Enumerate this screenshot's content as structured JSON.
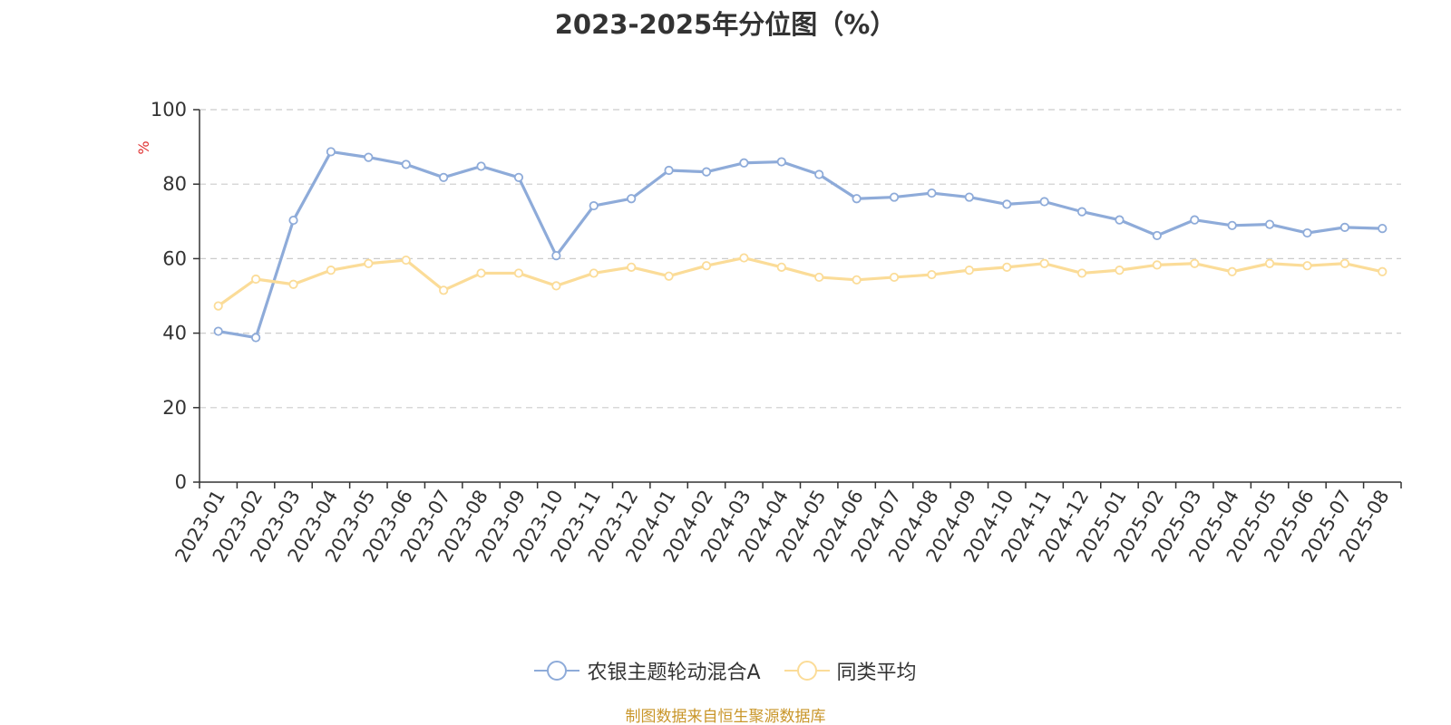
{
  "colors": {
    "series_1": "#8eabd9",
    "series_2": "#fbdc98",
    "unit": "#e03131",
    "source": "#c9962a",
    "grid": "#cccccc",
    "axis": "#333333"
  },
  "chart_data": {
    "type": "line",
    "title": "2023-2025年分位图（%）",
    "ylabel": "%",
    "ylim": [
      0,
      100
    ],
    "yticks": [
      "0",
      "20",
      "40",
      "60",
      "80",
      "100"
    ],
    "grid": true,
    "legend_position": "bottom",
    "categories": [
      "2023-01",
      "2023-02",
      "2023-03",
      "2023-04",
      "2023-05",
      "2023-06",
      "2023-07",
      "2023-08",
      "2023-09",
      "2023-10",
      "2023-11",
      "2023-12",
      "2024-01",
      "2024-02",
      "2024-03",
      "2024-04",
      "2024-05",
      "2024-06",
      "2024-07",
      "2024-08",
      "2024-09",
      "2024-10",
      "2024-11",
      "2024-12",
      "2025-01",
      "2025-02",
      "2025-03",
      "2025-04",
      "2025-05",
      "2025-06",
      "2025-07",
      "2025-08"
    ],
    "series": [
      {
        "name": "农银主题轮动混合A",
        "values": [
          40.5,
          38.8,
          70.3,
          88.7,
          87.2,
          85.3,
          81.8,
          84.8,
          81.8,
          60.8,
          74.2,
          76.1,
          83.7,
          83.3,
          85.7,
          86.0,
          82.6,
          76.1,
          76.5,
          77.6,
          76.5,
          74.6,
          75.3,
          72.6,
          70.4,
          66.2,
          70.4,
          68.9,
          69.2,
          66.9,
          68.4,
          68.1
        ]
      },
      {
        "name": "同类平均",
        "values": [
          47.3,
          54.5,
          53.1,
          56.9,
          58.7,
          59.6,
          51.5,
          56.1,
          56.1,
          52.7,
          56.1,
          57.7,
          55.3,
          58.1,
          60.2,
          57.7,
          55.0,
          54.3,
          55.0,
          55.7,
          56.9,
          57.7,
          58.7,
          56.1,
          56.9,
          58.3,
          58.7,
          56.5,
          58.7,
          58.1,
          58.7,
          56.5
        ]
      }
    ]
  },
  "source_note": "制图数据来自恒生聚源数据库"
}
